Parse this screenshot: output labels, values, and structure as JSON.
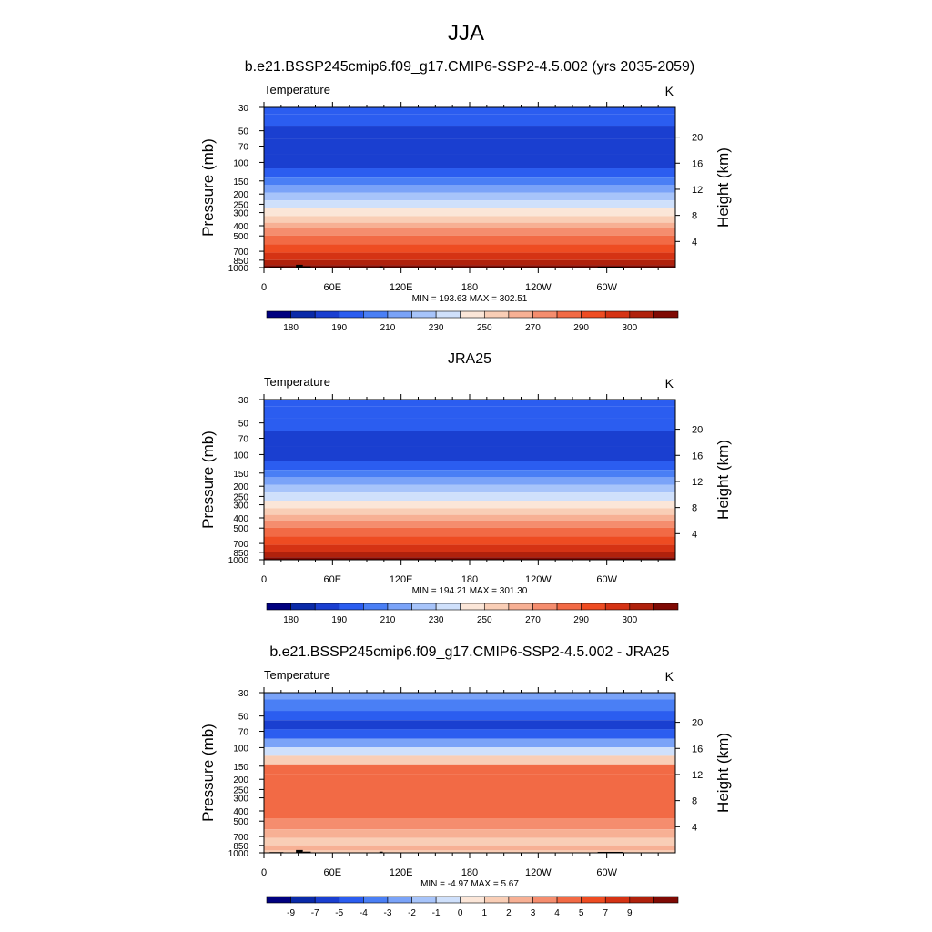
{
  "figure": {
    "title": "JJA"
  },
  "chart_data": [
    {
      "type": "heatmap",
      "title": "b.e21.BSSP245cmip6.f09_g17.CMIP6-SSP2-4.5.002 (yrs 2035-2059)",
      "variable": "Temperature",
      "units": "K",
      "ylabel": "Pressure (mb)",
      "ylabel_right": "Height (km)",
      "x_ticks": [
        "0",
        "60E",
        "120E",
        "180",
        "120W",
        "60W"
      ],
      "y_ticks": [
        "30",
        "50",
        "70",
        "100",
        "150",
        "200",
        "250",
        "300",
        "400",
        "500",
        "700",
        "850",
        "1000"
      ],
      "y2_ticks": [
        "20",
        "16",
        "12",
        "8",
        "4"
      ],
      "stats": "MIN = 193.63  MAX = 302.51",
      "colorbar_labels": [
        "180",
        "190",
        "210",
        "230",
        "250",
        "270",
        "290",
        "300"
      ],
      "band_levels": [
        {
          "p": 30,
          "level": 3
        },
        {
          "p": 40,
          "level": 3
        },
        {
          "p": 50,
          "level": 2
        },
        {
          "p": 70,
          "level": 2
        },
        {
          "p": 100,
          "level": 2
        },
        {
          "p": 130,
          "level": 3
        },
        {
          "p": 150,
          "level": 4
        },
        {
          "p": 180,
          "level": 5
        },
        {
          "p": 210,
          "level": 6
        },
        {
          "p": 250,
          "level": 7
        },
        {
          "p": 300,
          "level": 8
        },
        {
          "p": 350,
          "level": 9
        },
        {
          "p": 400,
          "level": 10
        },
        {
          "p": 450,
          "level": 11
        },
        {
          "p": 550,
          "level": 12
        },
        {
          "p": 650,
          "level": 13
        },
        {
          "p": 800,
          "level": 14
        },
        {
          "p": 900,
          "level": 15
        },
        {
          "p": 1000,
          "level": 16
        }
      ],
      "topography": [
        {
          "lon": 5,
          "width": 12,
          "p_top": 985
        },
        {
          "lon": 28,
          "width": 6,
          "p_top": 940
        },
        {
          "lon": 34,
          "width": 7,
          "p_top": 975
        },
        {
          "lon": 101,
          "width": 3,
          "p_top": 975
        },
        {
          "lon": 292,
          "width": 22,
          "p_top": 980
        }
      ]
    },
    {
      "type": "heatmap",
      "title": "JRA25",
      "variable": "Temperature",
      "units": "K",
      "ylabel": "Pressure (mb)",
      "ylabel_right": "Height (km)",
      "x_ticks": [
        "0",
        "60E",
        "120E",
        "180",
        "120W",
        "60W"
      ],
      "y_ticks": [
        "30",
        "50",
        "70",
        "100",
        "150",
        "200",
        "250",
        "300",
        "400",
        "500",
        "700",
        "850",
        "1000"
      ],
      "y2_ticks": [
        "20",
        "16",
        "12",
        "8",
        "4"
      ],
      "stats": "MIN = 194.21  MAX = 301.30",
      "colorbar_labels": [
        "180",
        "190",
        "210",
        "230",
        "250",
        "270",
        "290",
        "300"
      ],
      "band_levels": [
        {
          "p": 30,
          "level": 3
        },
        {
          "p": 40,
          "level": 3
        },
        {
          "p": 50,
          "level": 3
        },
        {
          "p": 70,
          "level": 2
        },
        {
          "p": 100,
          "level": 2
        },
        {
          "p": 130,
          "level": 3
        },
        {
          "p": 150,
          "level": 4
        },
        {
          "p": 180,
          "level": 5
        },
        {
          "p": 210,
          "level": 6
        },
        {
          "p": 250,
          "level": 7
        },
        {
          "p": 300,
          "level": 8
        },
        {
          "p": 350,
          "level": 9
        },
        {
          "p": 400,
          "level": 10
        },
        {
          "p": 450,
          "level": 11
        },
        {
          "p": 550,
          "level": 12
        },
        {
          "p": 650,
          "level": 13
        },
        {
          "p": 800,
          "level": 14
        },
        {
          "p": 900,
          "level": 15
        },
        {
          "p": 1000,
          "level": 16
        }
      ],
      "topography": []
    },
    {
      "type": "heatmap",
      "title": "b.e21.BSSP245cmip6.f09_g17.CMIP6-SSP2-4.5.002 - JRA25",
      "variable": "Temperature",
      "units": "K",
      "ylabel": "Pressure (mb)",
      "ylabel_right": "Height (km)",
      "x_ticks": [
        "0",
        "60E",
        "120E",
        "180",
        "120W",
        "60W"
      ],
      "y_ticks": [
        "30",
        "50",
        "70",
        "100",
        "150",
        "200",
        "250",
        "300",
        "400",
        "500",
        "700",
        "850",
        "1000"
      ],
      "y2_ticks": [
        "20",
        "16",
        "12",
        "8",
        "4"
      ],
      "stats": "MIN =  -4.97  MAX =   5.67",
      "colorbar_labels": [
        "-9",
        "-7",
        "-5",
        "-4",
        "-3",
        "-2",
        "-1",
        "0",
        "1",
        "2",
        "3",
        "4",
        "5",
        "7",
        "9"
      ],
      "band_levels": [
        {
          "p": 30,
          "level": 5
        },
        {
          "p": 40,
          "level": 4
        },
        {
          "p": 50,
          "level": 3
        },
        {
          "p": 60,
          "level": 2
        },
        {
          "p": 75,
          "level": 3
        },
        {
          "p": 90,
          "level": 5
        },
        {
          "p": 110,
          "level": 7
        },
        {
          "p": 130,
          "level": 9
        },
        {
          "p": 160,
          "level": 12
        },
        {
          "p": 200,
          "level": 12
        },
        {
          "p": 400,
          "level": 12
        },
        {
          "p": 550,
          "level": 11
        },
        {
          "p": 650,
          "level": 10
        },
        {
          "p": 800,
          "level": 9
        },
        {
          "p": 900,
          "level": 10
        },
        {
          "p": 1000,
          "level": 9
        }
      ],
      "topography": [
        {
          "lon": 5,
          "width": 12,
          "p_top": 985
        },
        {
          "lon": 28,
          "width": 6,
          "p_top": 940
        },
        {
          "lon": 34,
          "width": 7,
          "p_top": 975
        },
        {
          "lon": 101,
          "width": 3,
          "p_top": 975
        },
        {
          "lon": 292,
          "width": 22,
          "p_top": 980
        }
      ]
    }
  ],
  "palette": [
    "#00007f",
    "#0a2aa8",
    "#1a3fd0",
    "#2b5df0",
    "#4a7ff5",
    "#7aa3f8",
    "#a7c4fa",
    "#cfe0fb",
    "#fbe6d8",
    "#f9ceb6",
    "#f7b094",
    "#f58d6e",
    "#f26a45",
    "#ee4c22",
    "#d53314",
    "#b0210c",
    "#7f0a04"
  ]
}
